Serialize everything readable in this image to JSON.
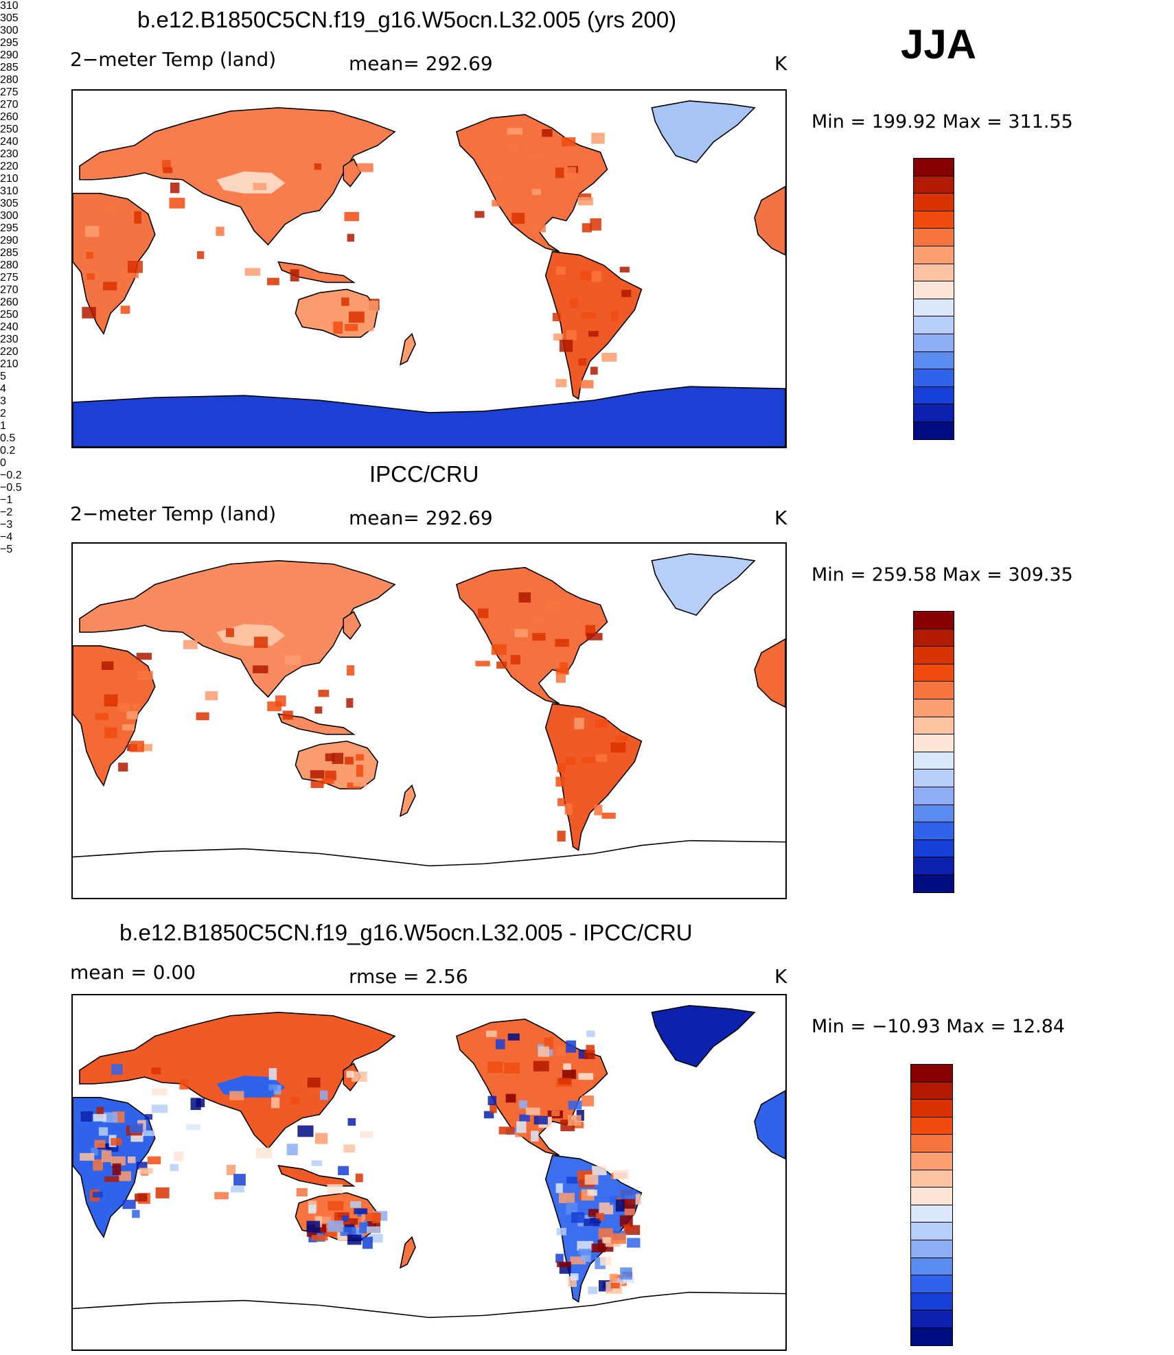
{
  "season": "JJA",
  "units": "K",
  "panels": [
    {
      "title": "b.e12.B1850C5CN.f19_g16.W5ocn.L32.005 (yrs 200)",
      "left_label": "2−meter Temp (land)",
      "mid_label": "mean=  292.69",
      "right_label": "K",
      "minmax": "Min  =  199.92  Max  =  311.55",
      "antarctica_shown": true,
      "antarctica_color": "#1c3fd4",
      "greenland_color": "#a8c4f5",
      "colorbar": {
        "labels": [
          "310",
          "305",
          "300",
          "295",
          "290",
          "285",
          "280",
          "275",
          "270",
          "260",
          "250",
          "240",
          "230",
          "220",
          "210"
        ],
        "colors": [
          "#860000",
          "#b21a00",
          "#d93300",
          "#f04c10",
          "#f97540",
          "#fb9e70",
          "#fdc3a3",
          "#fee5d6",
          "#dbe7fb",
          "#b6cef8",
          "#8daef4",
          "#5a8cf0",
          "#2f64ea",
          "#1740d6",
          "#0c22ae",
          "#000c80"
        ]
      },
      "region_colors": {
        "eurasia": "#f77d4e",
        "north_america": "#f5713f",
        "south_america": "#f05a26",
        "africa": "#f37342",
        "australia": "#fa9c6e",
        "tibet": "#fdd6c2",
        "patches_hot": "#d93300"
      }
    },
    {
      "title": "IPCC/CRU",
      "left_label": "2−meter Temp (land)",
      "mid_label": "mean=  292.69",
      "right_label": "K",
      "minmax": "Min  =  259.58  Max  =  309.35",
      "antarctica_shown": false,
      "antarctica_color": "#ffffff",
      "greenland_color": "#b6cef8",
      "colorbar": {
        "labels": [
          "310",
          "305",
          "300",
          "295",
          "290",
          "285",
          "280",
          "275",
          "270",
          "260",
          "250",
          "240",
          "230",
          "220",
          "210"
        ],
        "colors": [
          "#860000",
          "#b21a00",
          "#d93300",
          "#f04c10",
          "#f97540",
          "#fb9e70",
          "#fdc3a3",
          "#fee5d6",
          "#dbe7fb",
          "#b6cef8",
          "#8daef4",
          "#5a8cf0",
          "#2f64ea",
          "#1740d6",
          "#0c22ae",
          "#000c80"
        ]
      },
      "region_colors": {
        "eurasia": "#f98b60",
        "north_america": "#f5713f",
        "south_america": "#f05a26",
        "africa": "#f46a34",
        "australia": "#fa9c6e",
        "tibet": "#fdc3a3",
        "patches_hot": "#d93300"
      }
    },
    {
      "title": "b.e12.B1850C5CN.f19_g16.W5ocn.L32.005 - IPCC/CRU",
      "left_label": "mean  =       0.00",
      "mid_label": "rmse  =      2.56",
      "right_label": "K",
      "minmax": "Min  =  −10.93  Max  =    12.84",
      "antarctica_shown": false,
      "antarctica_color": "#ffffff",
      "greenland_color": "#0c22ae",
      "colorbar": {
        "labels": [
          "5",
          "4",
          "3",
          "2",
          "1",
          "0.5",
          "0.2",
          "0",
          "−0.2",
          "−0.5",
          "−1",
          "−2",
          "−3",
          "−4",
          "−5"
        ],
        "colors": [
          "#860000",
          "#b21a00",
          "#d93300",
          "#f04c10",
          "#f97540",
          "#fb9e70",
          "#fdc3a3",
          "#fee5d6",
          "#dbe7fb",
          "#b6cef8",
          "#8daef4",
          "#5a8cf0",
          "#2f64ea",
          "#1740d6",
          "#0c22ae",
          "#000c80"
        ]
      },
      "region_colors": {
        "eurasia": "#f05a26",
        "north_america": "#f46a34",
        "south_america": "#3c6ff0",
        "africa": "#2f64ea",
        "australia": "#f97540",
        "tibet": "#2f64ea",
        "patches_hot": "#b21a00"
      }
    }
  ]
}
